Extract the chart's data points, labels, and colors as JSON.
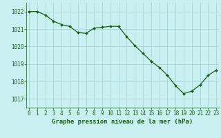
{
  "x": [
    0,
    1,
    2,
    3,
    4,
    5,
    6,
    7,
    8,
    9,
    10,
    11,
    12,
    13,
    14,
    15,
    16,
    17,
    18,
    19,
    20,
    21,
    22,
    23
  ],
  "y": [
    1022.0,
    1022.0,
    1021.8,
    1021.45,
    1021.25,
    1021.15,
    1020.8,
    1020.75,
    1021.05,
    1021.1,
    1021.15,
    1021.15,
    1020.55,
    1020.05,
    1019.6,
    1019.15,
    1018.8,
    1018.35,
    1017.75,
    1017.3,
    1017.45,
    1017.8,
    1018.35,
    1018.65
  ],
  "line_color": "#1a5c1a",
  "marker": "D",
  "marker_size": 2.0,
  "bg_color": "#c8f0f0",
  "grid_color": "#a8d8d8",
  "xlabel": "Graphe pression niveau de la mer (hPa)",
  "xlabel_color": "#1a5c1a",
  "tick_color": "#1a5c1a",
  "ylim": [
    1016.5,
    1022.5
  ],
  "xlim": [
    -0.3,
    23.3
  ],
  "yticks": [
    1017,
    1018,
    1019,
    1020,
    1021,
    1022
  ],
  "xticks": [
    0,
    1,
    2,
    3,
    4,
    5,
    6,
    7,
    8,
    9,
    10,
    11,
    12,
    13,
    14,
    15,
    16,
    17,
    18,
    19,
    20,
    21,
    22,
    23
  ],
  "label_fontsize": 6.5,
  "tick_fontsize": 5.5
}
